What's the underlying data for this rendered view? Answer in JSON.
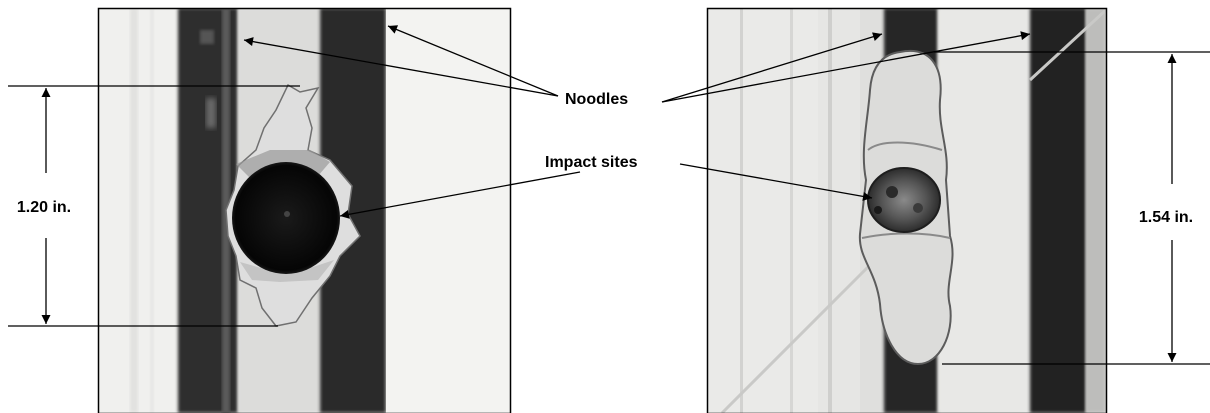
{
  "labels": {
    "noodles": "Noodles",
    "impact_sites": "Impact sites",
    "left_dimension": "1.20 in.",
    "right_dimension": "1.54 in."
  },
  "colors": {
    "line": "#000000",
    "panel_background": "#f1f1ef",
    "noodle_dark": "#2d2d2d",
    "crater_dark": "#080808"
  }
}
